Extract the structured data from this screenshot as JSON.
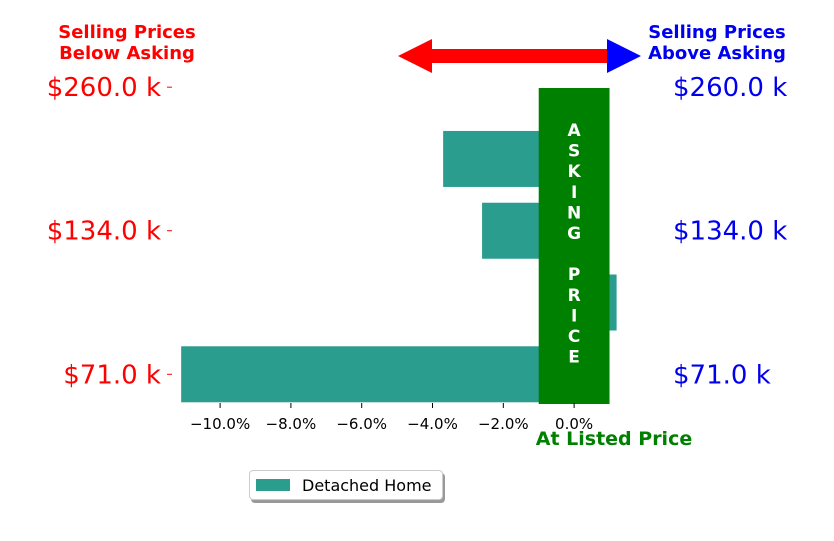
{
  "chart_data": {
    "type": "bar",
    "orientation": "horizontal",
    "categories": [
      "$71.0 k",
      "",
      "$134.0 k",
      "",
      "$260.0 k"
    ],
    "series": [
      {
        "name": "Detached Home",
        "color": "#2a9d8f",
        "points": [
          {
            "y": 0,
            "value": -11.1
          },
          {
            "y": 0.5,
            "value": 1.2
          },
          {
            "y": 1,
            "value": -2.6
          },
          {
            "y": 1.5,
            "value": -3.7
          }
        ]
      }
    ],
    "left_labels": [
      {
        "y": 0,
        "text": "$71.0 k"
      },
      {
        "y": 1,
        "text": "$134.0 k"
      },
      {
        "y": 2,
        "text": "$260.0 k"
      }
    ],
    "right_labels": [
      {
        "y": 0,
        "text": "$71.0 k"
      },
      {
        "y": 1,
        "text": "$134.0 k"
      },
      {
        "y": 2,
        "text": "$260.0 k"
      }
    ],
    "x_ticks": [
      -10,
      -8,
      -6,
      -4,
      -2,
      0
    ],
    "x_tick_labels": [
      "−10.0%",
      "−8.0%",
      "−6.0%",
      "−4.0%",
      "−2.0%",
      "0.0%"
    ],
    "xlim": [
      -11.5,
      2.2
    ],
    "ylim": [
      -0.2,
      2.05
    ],
    "band": {
      "x_from": -1.0,
      "x_to": 1.0,
      "color": "#008000",
      "letters": [
        "A",
        "S",
        "K",
        "I",
        "N",
        "G",
        "",
        "P",
        "R",
        "I",
        "C",
        "E"
      ]
    },
    "annotations": {
      "below_asking": "Selling Prices\nBelow Asking",
      "above_asking": "Selling Prices\nAbove Asking",
      "at_listed": "At Listed Price"
    },
    "colors": {
      "left_text": "#ff0000",
      "right_text": "#0000ee",
      "green": "#008000",
      "arrow_left": "#ff0000",
      "arrow_right": "#0000ff"
    },
    "legend": {
      "position": "bottom-left",
      "label": "Detached Home"
    }
  }
}
